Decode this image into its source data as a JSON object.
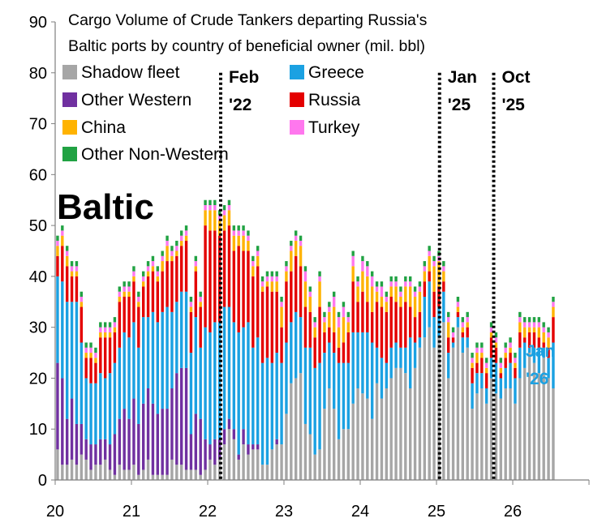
{
  "chart_data": {
    "type": "bar",
    "stacked": true,
    "title_lines": [
      "Cargo Volume of Crude Tankers departing Russia's",
      "Baltic ports by country of beneficial owner (mil. bbl)"
    ],
    "panel_label": "Baltic",
    "xlabel": "",
    "ylabel": "",
    "ylim": [
      0,
      90
    ],
    "y_ticks": [
      "0",
      "10",
      "20",
      "30",
      "40",
      "50",
      "60",
      "70",
      "80",
      "90"
    ],
    "xlim": [
      20,
      27
    ],
    "x_ticks": [
      "20",
      "21",
      "22",
      "23",
      "24",
      "25",
      "26"
    ],
    "grid": false,
    "legend_position": "top-left",
    "series": [
      {
        "name": "Shadow fleet",
        "color": "#a6a6a6",
        "values": [
          6,
          3,
          3,
          4,
          3,
          5,
          4,
          2,
          3,
          3,
          4,
          2,
          1,
          3,
          2,
          2,
          3,
          1,
          2,
          4,
          1,
          1,
          1,
          1,
          4,
          3,
          3,
          2,
          2,
          2,
          1,
          2,
          4,
          3,
          4,
          7,
          10,
          8,
          4,
          7,
          5,
          6,
          6,
          3,
          3,
          6,
          7,
          7,
          13,
          19,
          20,
          21,
          11,
          9,
          5,
          6,
          14,
          18,
          14,
          8,
          10,
          10,
          15,
          18,
          17,
          16,
          12,
          19,
          16,
          18,
          20,
          22,
          22,
          21,
          18,
          22,
          26,
          28,
          30,
          26,
          28,
          31,
          20,
          26,
          30,
          25,
          26,
          14,
          17,
          18,
          15,
          20,
          17,
          16,
          18,
          18,
          15,
          20,
          22,
          25,
          23,
          21,
          24,
          20,
          18
        ]
      },
      {
        "name": "Other Western",
        "color": "#7030a0",
        "values": [
          17,
          17,
          9,
          12,
          8,
          6,
          4,
          5,
          4,
          5,
          4,
          5,
          8,
          9,
          12,
          10,
          13,
          10,
          13,
          14,
          14,
          12,
          13,
          13,
          14,
          18,
          19,
          20,
          7,
          11,
          11,
          6,
          3,
          5,
          4,
          3,
          2,
          2,
          1,
          3,
          2,
          1,
          1,
          0,
          0,
          0,
          1,
          0,
          0,
          0,
          0,
          0,
          0,
          0,
          0,
          0,
          0,
          0,
          0,
          0,
          0,
          0,
          0,
          0,
          0,
          0,
          0,
          0,
          0,
          0,
          0,
          0,
          0,
          0,
          0,
          0,
          0,
          0,
          0,
          0,
          0,
          0,
          0,
          0,
          0,
          0,
          0,
          0,
          0,
          0,
          0,
          0,
          0,
          0,
          0,
          0,
          0,
          0,
          0,
          0,
          0,
          0,
          0,
          0,
          0
        ]
      },
      {
        "name": "Greece",
        "color": "#1ba1e2",
        "values": [
          17,
          19,
          23,
          19,
          24,
          16,
          12,
          12,
          12,
          13,
          12,
          14,
          14,
          14,
          15,
          16,
          15,
          15,
          17,
          14,
          18,
          18,
          19,
          20,
          15,
          14,
          15,
          15,
          16,
          19,
          14,
          22,
          22,
          23,
          23,
          24,
          22,
          21,
          24,
          20,
          24,
          19,
          21,
          20,
          21,
          17,
          17,
          16,
          14,
          12,
          13,
          11,
          15,
          17,
          17,
          17,
          11,
          9,
          11,
          15,
          13,
          13,
          14,
          11,
          12,
          13,
          15,
          7,
          8,
          5,
          6,
          5,
          4,
          5,
          10,
          5,
          2,
          8,
          9,
          6,
          6,
          6,
          5,
          1,
          2,
          3,
          2,
          5,
          4,
          3,
          3,
          4,
          6,
          4,
          4,
          5,
          5,
          6,
          5,
          1,
          3,
          5,
          2,
          4,
          9
        ]
      },
      {
        "name": "Russia",
        "color": "#e40000",
        "values": [
          4,
          7,
          7,
          5,
          5,
          7,
          4,
          5,
          4,
          7,
          8,
          7,
          6,
          9,
          7,
          8,
          8,
          8,
          6,
          8,
          8,
          8,
          8,
          9,
          10,
          9,
          9,
          10,
          8,
          9,
          8,
          20,
          20,
          18,
          17,
          15,
          16,
          14,
          17,
          15,
          14,
          14,
          14,
          14,
          14,
          14,
          12,
          7,
          12,
          10,
          11,
          10,
          8,
          7,
          6,
          11,
          4,
          3,
          4,
          3,
          4,
          6,
          10,
          6,
          8,
          6,
          6,
          9,
          10,
          10,
          10,
          8,
          8,
          9,
          6,
          5,
          5,
          3,
          2,
          5,
          4,
          2,
          3,
          1,
          1,
          1,
          2,
          3,
          2,
          3,
          3,
          4,
          3,
          1,
          2,
          2,
          2,
          3,
          1,
          3,
          3,
          2,
          1,
          2,
          5
        ]
      },
      {
        "name": "China",
        "color": "#ffb300",
        "values": [
          2,
          2,
          2,
          1,
          1,
          1,
          1,
          1,
          1,
          1,
          1,
          1,
          1,
          1,
          1,
          1,
          1,
          1,
          1,
          1,
          1,
          1,
          2,
          3,
          1,
          1,
          1,
          1,
          1,
          1,
          1,
          3,
          4,
          4,
          3,
          3,
          3,
          3,
          2,
          3,
          2,
          2,
          2,
          1,
          1,
          2,
          2,
          4,
          2,
          4,
          3,
          4,
          5,
          3,
          2,
          5,
          2,
          3,
          5,
          4,
          5,
          2,
          3,
          3,
          4,
          5,
          5,
          2,
          2,
          2,
          2,
          3,
          2,
          3,
          4,
          4,
          4,
          2,
          3,
          5,
          5,
          2,
          3,
          0,
          1,
          1,
          1,
          1,
          2,
          1,
          1,
          1,
          1,
          1,
          1,
          1,
          1,
          2,
          2,
          1,
          1,
          2,
          2,
          2,
          2
        ]
      },
      {
        "name": "Turkey",
        "color": "#ff77ee",
        "values": [
          1,
          1,
          1,
          1,
          1,
          1,
          1,
          1,
          1,
          1,
          1,
          1,
          1,
          1,
          1,
          1,
          1,
          1,
          1,
          1,
          1,
          1,
          1,
          1,
          1,
          1,
          1,
          1,
          1,
          1,
          1,
          1,
          1,
          1,
          1,
          1,
          1,
          1,
          1,
          1,
          1,
          1,
          1,
          1,
          1,
          1,
          1,
          1,
          1,
          1,
          1,
          1,
          2,
          1,
          1,
          1,
          1,
          1,
          2,
          2,
          2,
          1,
          2,
          1,
          2,
          2,
          2,
          1,
          2,
          1,
          1,
          1,
          1,
          1,
          1,
          1,
          1,
          1,
          1,
          1,
          1,
          1,
          1,
          1,
          1,
          1,
          1,
          1,
          1,
          1,
          1,
          1,
          1,
          1,
          1,
          1,
          1,
          1,
          1,
          1,
          1,
          1,
          1,
          1,
          1
        ]
      },
      {
        "name": "Other Non-Western",
        "color": "#21a243",
        "values": [
          1,
          1,
          1,
          1,
          1,
          1,
          1,
          1,
          1,
          1,
          1,
          1,
          1,
          1,
          1,
          1,
          1,
          1,
          1,
          1,
          1,
          1,
          1,
          1,
          1,
          1,
          1,
          1,
          1,
          1,
          1,
          1,
          1,
          1,
          1,
          1,
          1,
          1,
          1,
          1,
          1,
          1,
          1,
          1,
          1,
          1,
          1,
          1,
          1,
          1,
          1,
          1,
          1,
          1,
          1,
          1,
          1,
          1,
          1,
          1,
          1,
          1,
          1,
          1,
          1,
          1,
          1,
          1,
          1,
          1,
          1,
          1,
          1,
          1,
          1,
          1,
          1,
          1,
          1,
          1,
          1,
          1,
          1,
          1,
          1,
          1,
          1,
          1,
          1,
          1,
          1,
          1,
          1,
          1,
          1,
          1,
          1,
          1,
          1,
          1,
          1,
          1,
          1,
          1,
          1
        ]
      }
    ],
    "legend": [
      "Shadow fleet",
      "Greece",
      "Other Western",
      "Russia",
      "China",
      "Turkey",
      "Other Non-Western"
    ],
    "annotations": [
      {
        "lines": [
          "Feb",
          "'22"
        ],
        "x": 22.17
      },
      {
        "lines": [
          "Jan",
          "'25"
        ],
        "x": 25.04
      },
      {
        "lines": [
          "Oct",
          "'25"
        ],
        "x": 25.75
      }
    ],
    "latest_label": {
      "lines": [
        "Jan",
        "'26"
      ],
      "color": "#1ba1e2"
    }
  }
}
